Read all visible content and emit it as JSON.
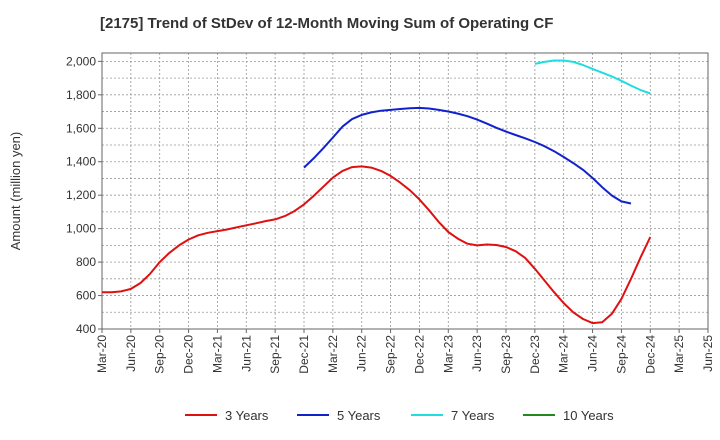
{
  "chart_data": {
    "type": "line",
    "title": "[2175]  Trend of StDev of 12-Month Moving Sum of Operating CF",
    "xlabel": "",
    "ylabel": "Amount (million yen)",
    "ylim": [
      400,
      2050
    ],
    "yticks": [
      400,
      600,
      800,
      1000,
      1200,
      1400,
      1600,
      1800,
      2000
    ],
    "ytick_labels": [
      "400",
      "600",
      "800",
      "1,000",
      "1,200",
      "1,400",
      "1,600",
      "1,800",
      "2,000"
    ],
    "x_tick_labels": [
      "Mar-20",
      "Jun-20",
      "Sep-20",
      "Dec-20",
      "Mar-21",
      "Jun-21",
      "Sep-21",
      "Dec-21",
      "Mar-22",
      "Jun-22",
      "Sep-22",
      "Dec-22",
      "Mar-23",
      "Jun-23",
      "Sep-23",
      "Dec-23",
      "Mar-24",
      "Jun-24",
      "Sep-24",
      "Dec-24",
      "Mar-25",
      "Jun-25"
    ],
    "grid": true,
    "legend_position": "bottom",
    "series": [
      {
        "name": "3 Years",
        "color": "#dd1111",
        "start_index": 0,
        "values": [
          620,
          620,
          625,
          640,
          675,
          730,
          800,
          855,
          900,
          935,
          960,
          975,
          985,
          995,
          1008,
          1020,
          1032,
          1045,
          1055,
          1075,
          1105,
          1145,
          1195,
          1250,
          1305,
          1345,
          1368,
          1372,
          1365,
          1345,
          1315,
          1275,
          1230,
          1175,
          1110,
          1040,
          980,
          940,
          910,
          900,
          905,
          902,
          890,
          865,
          825,
          760,
          690,
          620,
          555,
          500,
          460,
          435,
          440,
          490,
          580,
          700,
          830,
          950
        ]
      },
      {
        "name": "5 Years",
        "color": "#1122cc",
        "start_index": 21,
        "values": [
          1365,
          1420,
          1480,
          1545,
          1610,
          1655,
          1680,
          1695,
          1705,
          1710,
          1715,
          1720,
          1722,
          1718,
          1710,
          1700,
          1688,
          1672,
          1652,
          1628,
          1603,
          1580,
          1560,
          1540,
          1518,
          1493,
          1463,
          1428,
          1392,
          1352,
          1303,
          1248,
          1198,
          1163,
          1150
        ]
      },
      {
        "name": "7 Years",
        "color": "#22dddd",
        "start_index": 45,
        "values": [
          1985,
          1997,
          2005,
          2005,
          1997,
          1978,
          1955,
          1932,
          1910,
          1884,
          1855,
          1828,
          1808
        ]
      },
      {
        "name": "10 Years",
        "color": "#228822",
        "start_index": 0,
        "values": []
      }
    ]
  }
}
